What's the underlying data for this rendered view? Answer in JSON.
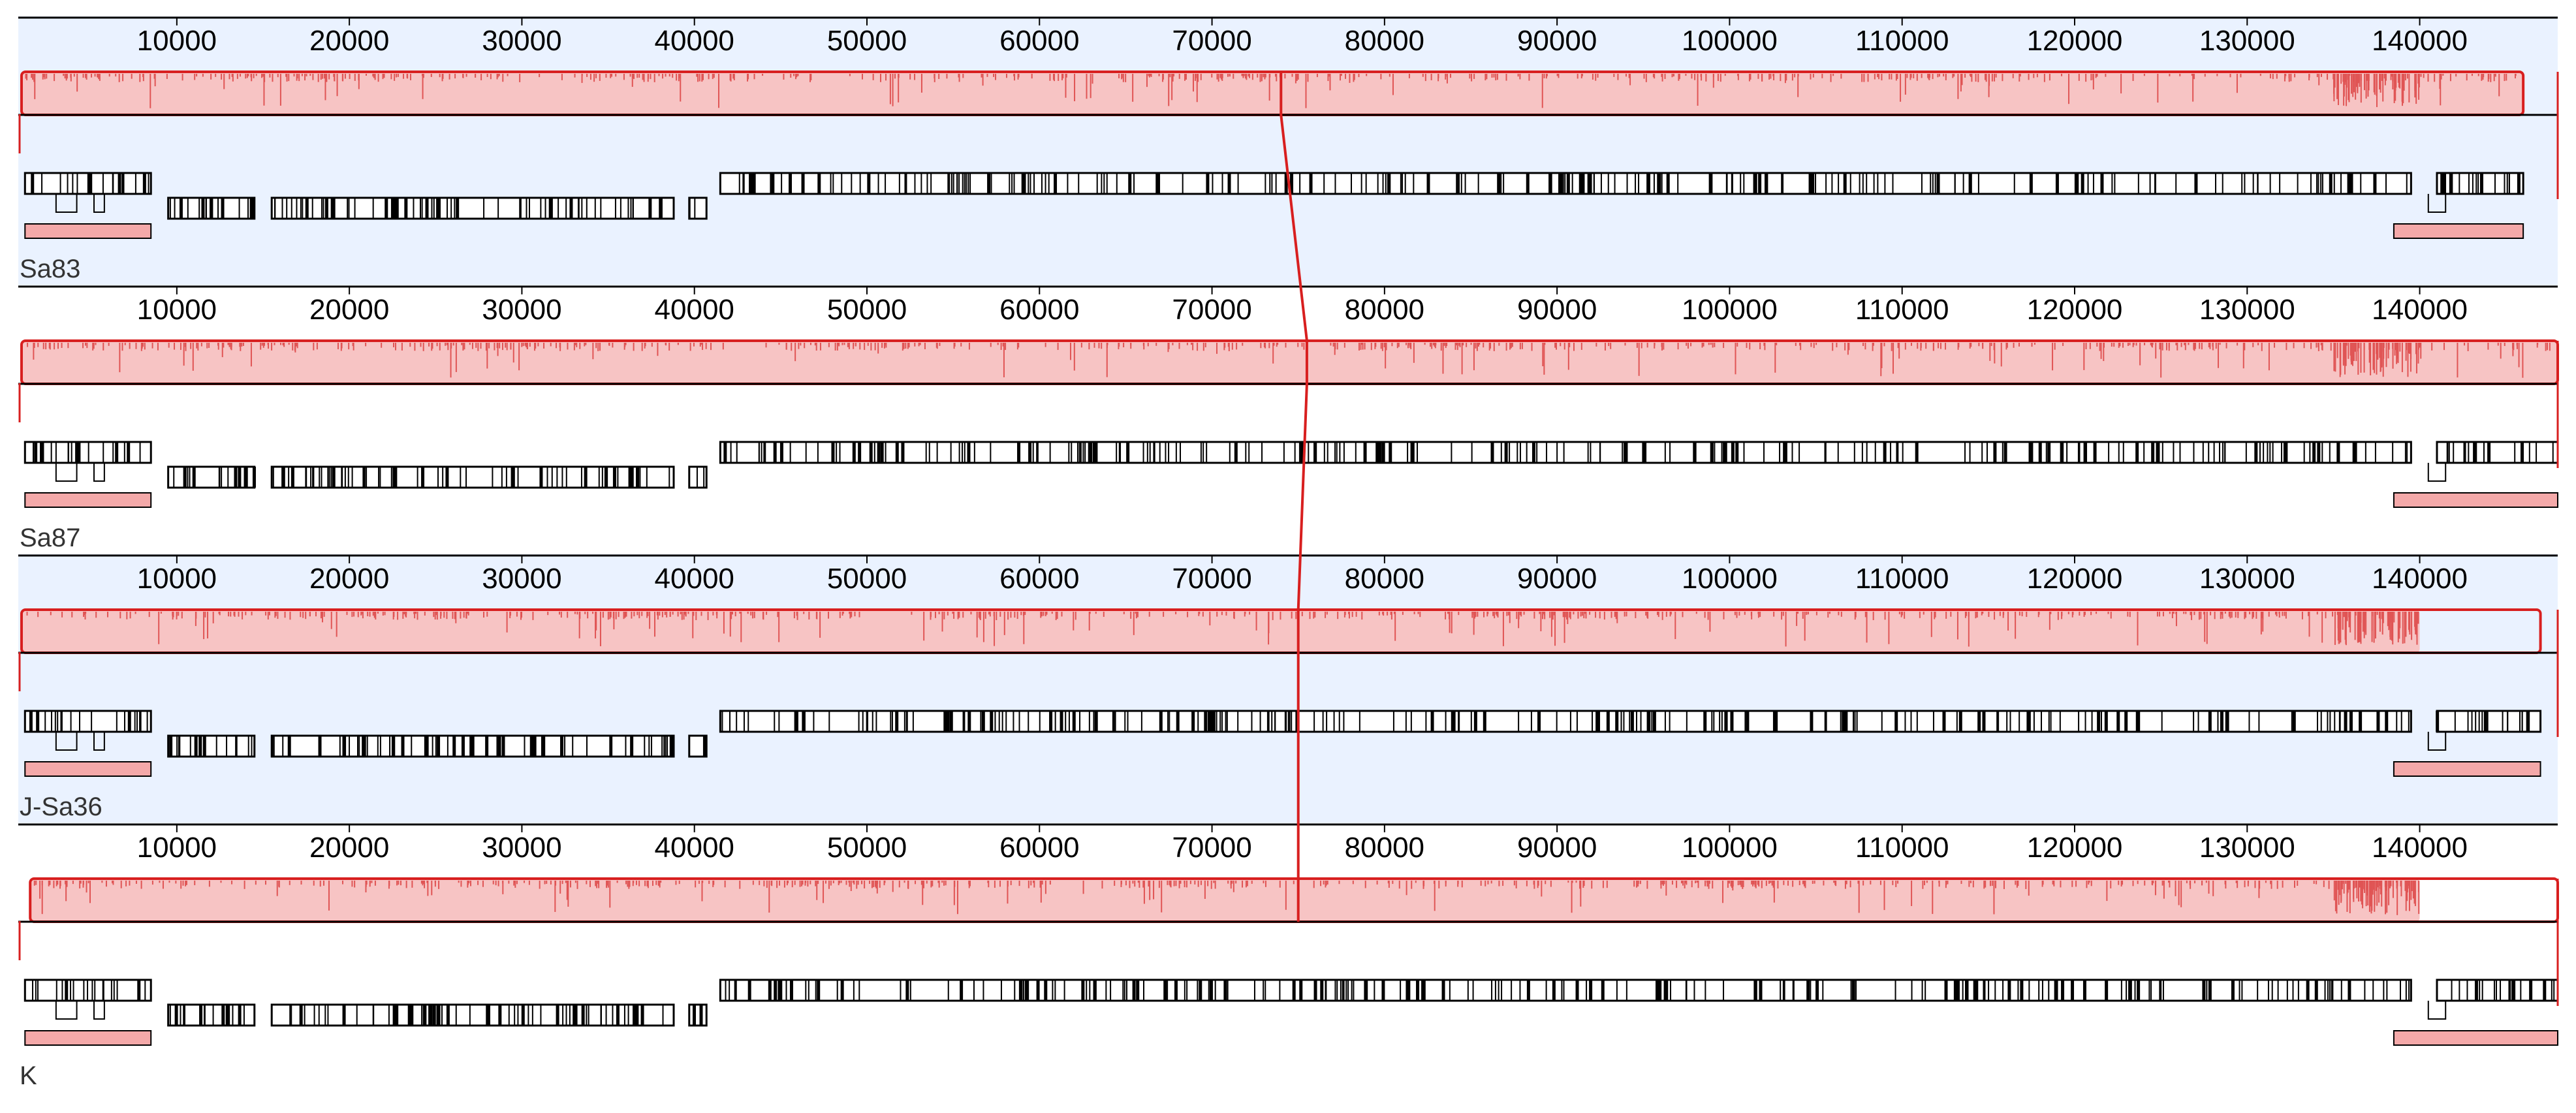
{
  "viewer": {
    "type": "mauve-alignment",
    "axis_max": 148000,
    "tick_labels": [
      "10000",
      "20000",
      "30000",
      "40000",
      "50000",
      "60000",
      "70000",
      "80000",
      "90000",
      "100000",
      "110000",
      "120000",
      "130000",
      "140000"
    ],
    "colors": {
      "highlight_bg": "#eaf2ff",
      "plain_bg": "#ffffff",
      "lcb_fill": "#f7c4c4",
      "lcb_stroke": "#d81f1f",
      "similarity": "#e05555",
      "connector": "#d81f1f",
      "gene_stroke": "#000000",
      "feature_fill": "#f4a9a9",
      "label_text": "#333333"
    }
  },
  "genomes": [
    {
      "label": "Sa83",
      "background": "highlight",
      "lcb_start": 1000,
      "lcb_end": 146000,
      "lcb_end_partial": 146000
    },
    {
      "label": "Sa87",
      "background": "plain",
      "lcb_start": 1000,
      "lcb_end": 148000,
      "lcb_end_partial": 148000
    },
    {
      "label": "J-Sa36",
      "background": "highlight",
      "lcb_start": 1000,
      "lcb_end": 147000,
      "lcb_end_partial": 140000
    },
    {
      "label": "K",
      "background": "plain",
      "lcb_start": 1500,
      "lcb_end": 148000,
      "lcb_end_partial": 140000
    }
  ],
  "connector_positions": [
    74000,
    75500,
    75000,
    75000
  ]
}
